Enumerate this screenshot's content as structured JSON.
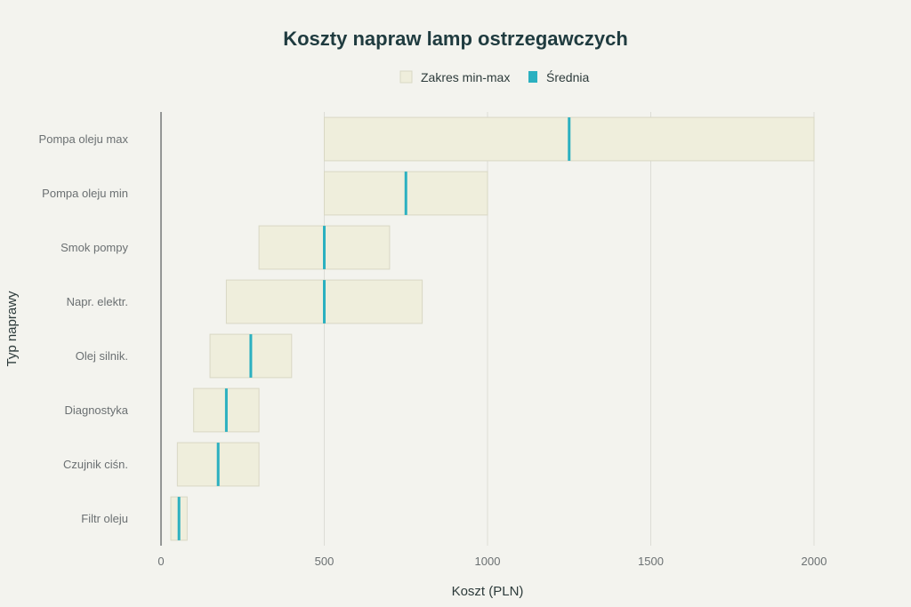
{
  "chart_data": {
    "type": "bar",
    "orientation": "horizontal",
    "title": "Koszty napraw lamp ostrzegawczych",
    "xlabel": "Koszt (PLN)",
    "ylabel": "Typ naprawy",
    "xlim": [
      0,
      2000
    ],
    "xticks": [
      0,
      500,
      1000,
      1500,
      2000
    ],
    "grid": true,
    "legend_position": "top-center",
    "legend": [
      {
        "label": "Zakres min-max",
        "color": "#efeedc"
      },
      {
        "label": "Średnia",
        "color": "#2bb0c0"
      }
    ],
    "categories": [
      "Pompa oleju max",
      "Pompa oleju min",
      "Smok pompy",
      "Napr. elektr.",
      "Olej silnik.",
      "Diagnostyka",
      "Czujnik ciśn.",
      "Filtr oleju"
    ],
    "series": [
      {
        "name": "Zakres min-max",
        "min": [
          500,
          500,
          300,
          200,
          150,
          100,
          50,
          30
        ],
        "max": [
          2000,
          1000,
          700,
          800,
          400,
          300,
          300,
          80
        ]
      },
      {
        "name": "Średnia",
        "values": [
          1250,
          750,
          500,
          500,
          275,
          200,
          175,
          55
        ]
      }
    ]
  }
}
